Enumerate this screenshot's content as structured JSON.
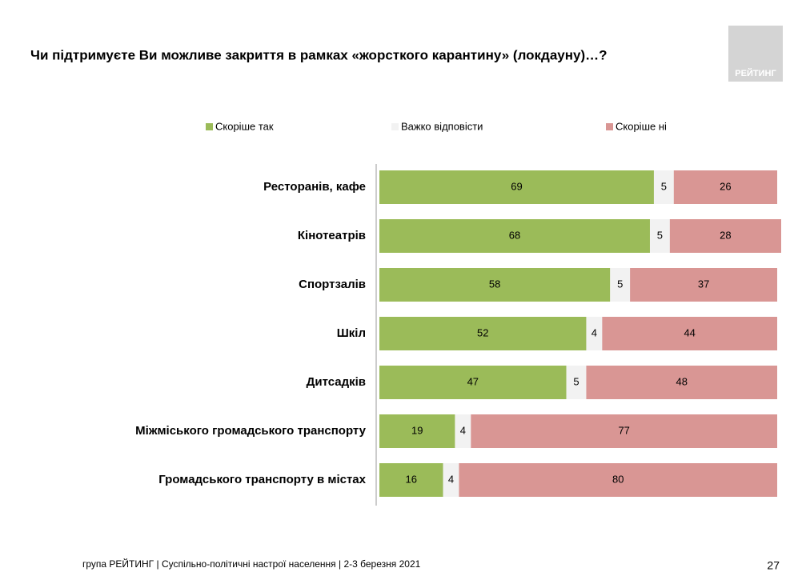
{
  "chart_data": {
    "type": "stacked-bar-horizontal",
    "title": "Чи підтримуєте Ви можливе закриття в рамках «жорсткого карантину» (локдауну)…?",
    "categories": [
      "Ресторанів, кафе",
      "Кінотеатрів",
      "Спортзалів",
      "Шкіл",
      "Дитсадків",
      "Міжміського громадського транспорту",
      "Громадського транспорту в містах"
    ],
    "series": [
      {
        "name": "Скоріше так",
        "color": "#9bbb59",
        "values": [
          69,
          68,
          58,
          52,
          47,
          19,
          16
        ]
      },
      {
        "name": "Важко відповісти",
        "color": "#f2f2f2",
        "values": [
          5,
          5,
          5,
          4,
          5,
          4,
          4
        ]
      },
      {
        "name": "Скоріше ні",
        "color": "#d99694",
        "values": [
          26,
          28,
          37,
          44,
          48,
          77,
          80
        ]
      }
    ]
  },
  "logo": "РЕЙТИНГ",
  "footer": "група РЕЙТИНГ | Суспільно-політичні настрої населення  | 2-3 березня 2021",
  "page_number": "27"
}
